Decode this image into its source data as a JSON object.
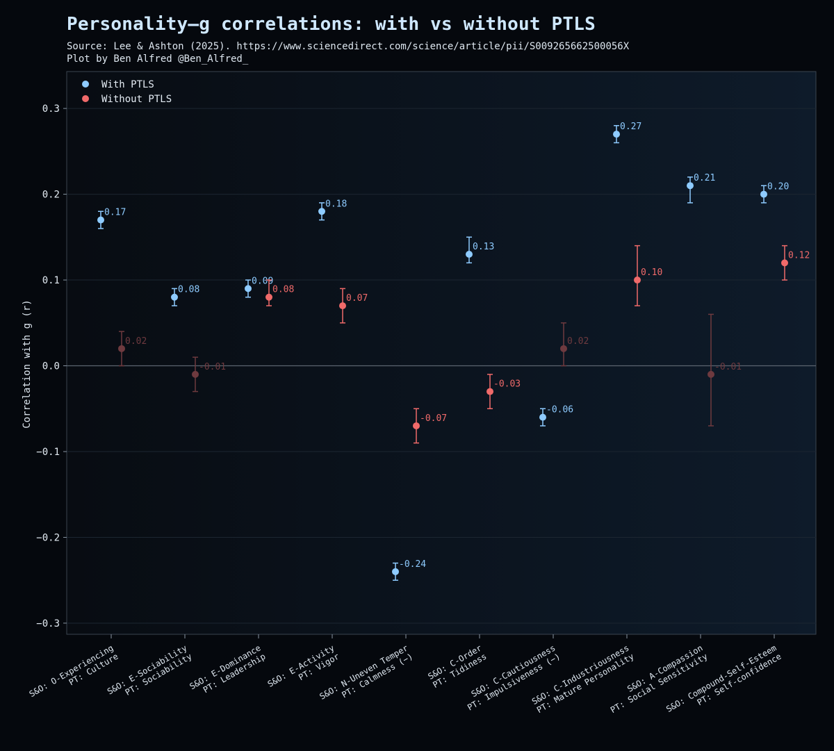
{
  "chart_data": {
    "type": "scatter",
    "title": "Personality–g correlations: with vs without PTLS",
    "subtitle_lines": [
      "Source: Lee & Ashton (2025). https://www.sciencedirect.com/science/article/pii/S009265662500056X",
      "Plot by Ben Alfred @Ben_Alfred_"
    ],
    "ylabel": "Correlation with g (r)",
    "xlabel": "",
    "ylim": [
      -0.313,
      0.343
    ],
    "yticks": [
      -0.3,
      -0.2,
      -0.1,
      0.0,
      0.1,
      0.2,
      0.3
    ],
    "ytick_labels": [
      "−0.3",
      "−0.2",
      "−0.1",
      "0.0",
      "0.1",
      "0.2",
      "0.3"
    ],
    "grid": "horizontal",
    "legend_position": "top-left",
    "categories": [
      [
        "S&O: O-Experiencing",
        "PT:  Culture"
      ],
      [
        "S&O: E-Sociability",
        "PT:  Sociability"
      ],
      [
        "S&O: E-Dominance",
        "PT:  Leadership"
      ],
      [
        "S&O: E-Activity",
        "PT:  Vigor"
      ],
      [
        "S&O: N-Uneven Temper",
        "PT:  Calmness (−)"
      ],
      [
        "S&O: C-Order",
        "PT:  Tidiness"
      ],
      [
        "S&O: C-Cautiousness",
        "PT:  Impulsiveness (−)"
      ],
      [
        "S&O: C-Industriousness",
        "PT:  Mature Personality"
      ],
      [
        "S&O: A-Compassion",
        "PT:  Social Sensitivity"
      ],
      [
        "S&O: Compound-Self-Esteem",
        "PT:  Self-confidence"
      ]
    ],
    "series": [
      {
        "name": "With PTLS",
        "color": "#8ecbff",
        "values": [
          0.17,
          0.08,
          0.09,
          0.18,
          -0.24,
          0.13,
          -0.06,
          0.27,
          0.21,
          0.2
        ],
        "labels": [
          "0.17",
          "0.08",
          "0.09",
          "0.18",
          "-0.24",
          "0.13",
          "-0.06",
          "0.27",
          "0.21",
          "0.20"
        ],
        "ci": [
          [
            0.16,
            0.18
          ],
          [
            0.07,
            0.09
          ],
          [
            0.08,
            0.1
          ],
          [
            0.17,
            0.19
          ],
          [
            -0.25,
            -0.23
          ],
          [
            0.12,
            0.15
          ],
          [
            -0.07,
            -0.05
          ],
          [
            0.26,
            0.28
          ],
          [
            0.19,
            0.22
          ],
          [
            0.19,
            0.21
          ]
        ],
        "faded": [
          false,
          false,
          false,
          false,
          false,
          false,
          false,
          false,
          false,
          false
        ]
      },
      {
        "name": "Without PTLS",
        "color": "#f06a6a",
        "faded_color": "#6e3a3f",
        "values": [
          0.02,
          -0.01,
          0.08,
          0.07,
          -0.07,
          -0.03,
          0.02,
          0.1,
          -0.01,
          0.12
        ],
        "labels": [
          "0.02",
          "-0.01",
          "0.08",
          "0.07",
          "-0.07",
          "-0.03",
          "0.02",
          "0.10",
          "-0.01",
          "0.12"
        ],
        "ci": [
          [
            0.0,
            0.04
          ],
          [
            -0.03,
            0.01
          ],
          [
            0.07,
            0.1
          ],
          [
            0.05,
            0.09
          ],
          [
            -0.09,
            -0.05
          ],
          [
            -0.05,
            -0.01
          ],
          [
            0.0,
            0.05
          ],
          [
            0.07,
            0.14
          ],
          [
            -0.07,
            0.06
          ],
          [
            0.1,
            0.14
          ]
        ],
        "faded": [
          true,
          true,
          false,
          false,
          false,
          false,
          true,
          false,
          true,
          false
        ]
      }
    ]
  }
}
